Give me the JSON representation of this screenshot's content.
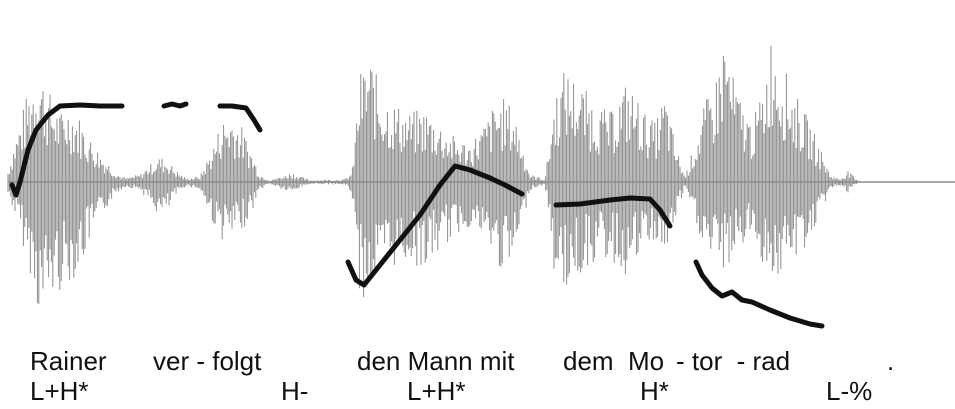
{
  "colors": {
    "waveform": "#8c8c8c",
    "pitch": "#111111",
    "background": "#ffffff"
  },
  "words": [
    {
      "id": "rainer",
      "text": "Rainer"
    },
    {
      "id": "ver-folgt",
      "text": "ver - folgt"
    },
    {
      "id": "den-mann-mit",
      "text": "den Mann mit"
    },
    {
      "id": "dem-mo",
      "text": "dem  Mo"
    },
    {
      "id": "tor-rad",
      "text": "- tor  - rad"
    },
    {
      "id": "period",
      "text": "."
    }
  ],
  "tones": [
    {
      "id": "lh-1",
      "text": "L+H*"
    },
    {
      "id": "h-minus",
      "text": "H-"
    },
    {
      "id": "lh-2",
      "text": "L+H*"
    },
    {
      "id": "h-star",
      "text": "H*"
    },
    {
      "id": "l-percent",
      "text": "L-%"
    }
  ]
}
